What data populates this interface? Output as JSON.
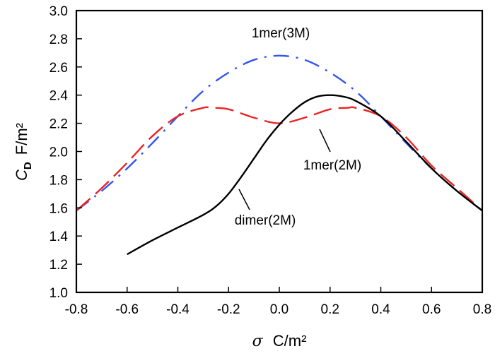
{
  "chart_data": {
    "type": "line",
    "xlabel": {
      "symbol": "σ",
      "unit": "C/m²"
    },
    "ylabel": {
      "symbol": "C",
      "subscript": "D",
      "unit": "F/m²"
    },
    "xlim": [
      -0.8,
      0.8
    ],
    "ylim": [
      1.0,
      3.0
    ],
    "xticks": [
      "-0.8",
      "-0.6",
      "-0.4",
      "-0.2",
      "0.0",
      "0.2",
      "0.4",
      "0.6",
      "0.8"
    ],
    "yticks": [
      "1.0",
      "1.2",
      "1.4",
      "1.6",
      "1.8",
      "2.0",
      "2.2",
      "2.4",
      "2.6",
      "2.8",
      "3.0"
    ],
    "grid": false,
    "series": [
      {
        "name": "1mer(3M)",
        "color": "#3355ee",
        "style": "dash-dot",
        "x": [
          -0.8,
          -0.7,
          -0.6,
          -0.5,
          -0.4,
          -0.3,
          -0.2,
          -0.1,
          0.0,
          0.1,
          0.2,
          0.3,
          0.4,
          0.5,
          0.6,
          0.7,
          0.8
        ],
        "y": [
          1.58,
          1.72,
          1.88,
          2.06,
          2.25,
          2.43,
          2.56,
          2.65,
          2.68,
          2.65,
          2.56,
          2.43,
          2.25,
          2.06,
          1.88,
          1.72,
          1.58
        ]
      },
      {
        "name": "1mer(2M)",
        "color": "#ee2222",
        "style": "dashed",
        "x": [
          -0.8,
          -0.7,
          -0.6,
          -0.5,
          -0.4,
          -0.3,
          -0.27,
          -0.2,
          -0.1,
          0.0,
          0.1,
          0.2,
          0.27,
          0.3,
          0.4,
          0.5,
          0.6,
          0.7,
          0.8
        ],
        "y": [
          1.58,
          1.74,
          1.92,
          2.11,
          2.25,
          2.31,
          2.31,
          2.3,
          2.24,
          2.2,
          2.24,
          2.3,
          2.31,
          2.31,
          2.25,
          2.1,
          1.9,
          1.74,
          1.58
        ]
      },
      {
        "name": "dimer(2M)",
        "color": "#000000",
        "style": "solid",
        "x": [
          -0.6,
          -0.5,
          -0.4,
          -0.3,
          -0.25,
          -0.2,
          -0.15,
          -0.1,
          -0.05,
          0.0,
          0.05,
          0.1,
          0.15,
          0.2,
          0.25,
          0.3,
          0.4,
          0.5,
          0.6,
          0.7,
          0.8
        ],
        "y": [
          1.27,
          1.37,
          1.46,
          1.55,
          1.61,
          1.7,
          1.82,
          1.95,
          2.08,
          2.19,
          2.28,
          2.35,
          2.39,
          2.4,
          2.39,
          2.36,
          2.25,
          2.07,
          1.88,
          1.72,
          1.58
        ]
      }
    ],
    "annotations": [
      {
        "text": "1mer(3M)",
        "series": "1mer(3M)"
      },
      {
        "text": "1mer(2M)",
        "series": "1mer(2M)"
      },
      {
        "text": "dimer(2M)",
        "series": "dimer(2M)"
      }
    ]
  }
}
